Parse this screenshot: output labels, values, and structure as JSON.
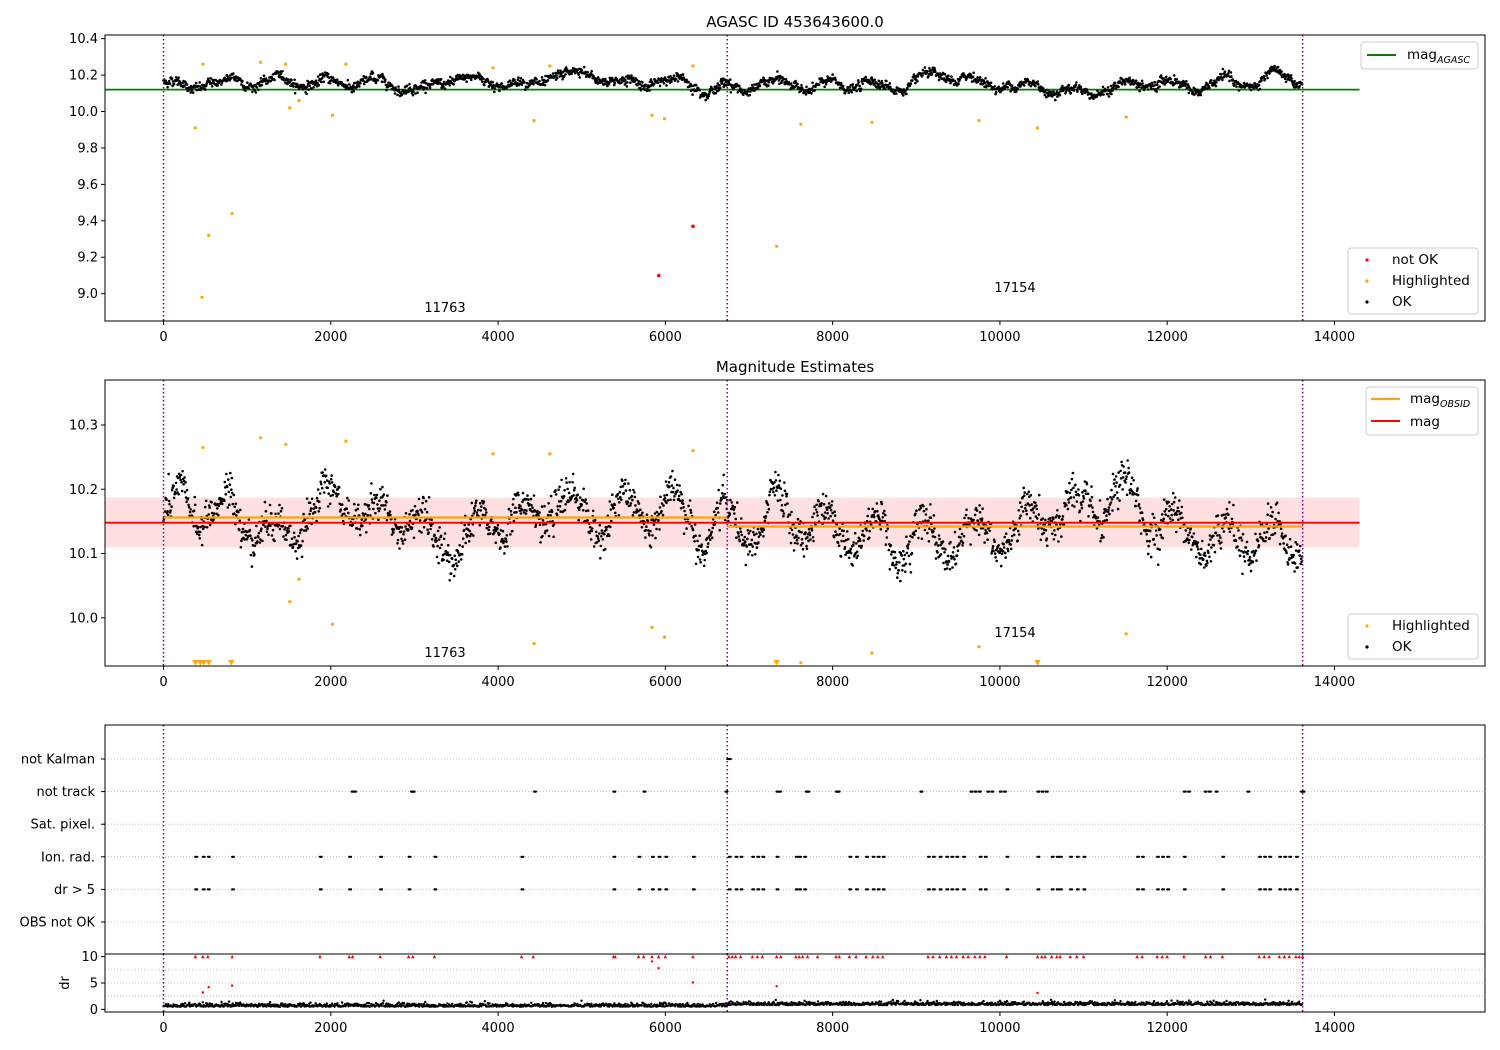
{
  "figure": {
    "top_title": "AGASC ID 453643600.0",
    "middle_title": "Magnitude Estimates",
    "obsid_labels": [
      "11763",
      "17154"
    ]
  },
  "colors": {
    "ok": "#000000",
    "not_ok": "#ff0000",
    "highlighted": "#ffa500",
    "mag_agasc": "#008000",
    "mag_obsid": "#ffa500",
    "mag": "#ff0000",
    "band": "#ffcccc",
    "obs_boundary": "#800080"
  },
  "legends": {
    "top_line": {
      "label": "mag",
      "sub": "AGASC"
    },
    "top_points": [
      "not OK",
      "Highlighted",
      "OK"
    ],
    "middle_lines": [
      {
        "label": "mag",
        "sub": "OBSID"
      },
      {
        "label": "mag",
        "sub": ""
      }
    ],
    "middle_points": [
      "Highlighted",
      "OK"
    ]
  },
  "chart_data": [
    {
      "type": "scatter",
      "title": "AGASC ID 453643600.0",
      "xlim": [
        -700,
        15800
      ],
      "ylim": [
        8.85,
        10.42
      ],
      "xticks": [
        0,
        2000,
        4000,
        6000,
        8000,
        10000,
        12000,
        14000
      ],
      "yticks": [
        9.0,
        9.2,
        9.4,
        9.6,
        9.8,
        10.0,
        10.2,
        10.4
      ],
      "obs_boundaries": [
        0,
        6740,
        13620
      ],
      "obsids": [
        {
          "label": "11763",
          "x": 3400,
          "y": 8.92
        },
        {
          "label": "17154",
          "x": 10150,
          "y": 9.03
        }
      ],
      "mag_agasc": 10.12,
      "mag_agasc_range": [
        -700,
        14300
      ],
      "ok_series": {
        "name": "OK",
        "segments": [
          {
            "x": [
              0,
              6740
            ],
            "mean": 10.16,
            "spread": 0.03
          },
          {
            "x": [
              6740,
              13620
            ],
            "mean": 10.14,
            "spread": 0.04
          }
        ]
      },
      "highlighted_points": [
        [
          380,
          9.91
        ],
        [
          460,
          8.98
        ],
        [
          470,
          10.26
        ],
        [
          540,
          9.32
        ],
        [
          820,
          9.44
        ],
        [
          1160,
          10.27
        ],
        [
          1460,
          10.26
        ],
        [
          1510,
          10.02
        ],
        [
          1620,
          10.06
        ],
        [
          2020,
          9.98
        ],
        [
          2180,
          10.26
        ],
        [
          3940,
          10.24
        ],
        [
          4430,
          9.95
        ],
        [
          4620,
          10.25
        ],
        [
          5840,
          9.98
        ],
        [
          5990,
          9.96
        ],
        [
          6330,
          10.25
        ],
        [
          7330,
          9.26
        ],
        [
          7620,
          9.93
        ],
        [
          8470,
          9.94
        ],
        [
          9750,
          9.95
        ],
        [
          10450,
          9.91
        ],
        [
          11510,
          9.97
        ]
      ],
      "not_ok_points": [
        [
          5920,
          9.1
        ],
        [
          6330,
          9.37
        ]
      ],
      "legend": "right"
    },
    {
      "type": "scatter",
      "title": "Magnitude Estimates",
      "xlim": [
        -700,
        15800
      ],
      "ylim": [
        9.925,
        10.37
      ],
      "xticks": [
        0,
        2000,
        4000,
        6000,
        8000,
        10000,
        12000,
        14000
      ],
      "yticks": [
        10.0,
        10.1,
        10.2,
        10.3
      ],
      "obs_boundaries": [
        0,
        6740,
        13620
      ],
      "obsids": [
        {
          "label": "11763",
          "x": 3400,
          "y": 9.94
        },
        {
          "label": "17154",
          "x": 10150,
          "y": 9.97
        }
      ],
      "mag": 10.148,
      "mag_band": [
        10.11,
        10.187
      ],
      "mag_range": [
        -700,
        14300
      ],
      "mag_obsid": [
        {
          "x": [
            0,
            6740
          ],
          "value": 10.156
        },
        {
          "x": [
            6740,
            13620
          ],
          "value": 10.142
        }
      ],
      "ok_series": {
        "name": "OK",
        "segments": [
          {
            "x": [
              0,
              6740
            ],
            "mean": 10.155,
            "spread": 0.035
          },
          {
            "x": [
              6740,
              13620
            ],
            "mean": 10.14,
            "spread": 0.045
          }
        ]
      },
      "highlighted_points": [
        [
          470,
          10.265
        ],
        [
          1160,
          10.28
        ],
        [
          1460,
          10.27
        ],
        [
          1510,
          10.025
        ],
        [
          1620,
          10.06
        ],
        [
          2020,
          9.99
        ],
        [
          2180,
          10.275
        ],
        [
          3940,
          10.255
        ],
        [
          4430,
          9.96
        ],
        [
          4620,
          10.255
        ],
        [
          5840,
          9.985
        ],
        [
          5990,
          9.97
        ],
        [
          6330,
          10.26
        ],
        [
          7620,
          9.93
        ],
        [
          8470,
          9.945
        ],
        [
          9750,
          9.955
        ],
        [
          11510,
          9.975
        ]
      ],
      "clipped_markers": [
        380,
        440,
        480,
        540,
        810,
        7330,
        10450
      ],
      "legend": "right"
    },
    {
      "type": "scatter",
      "xlim": [
        -700,
        15800
      ],
      "categories": [
        "not Kalman",
        "not track",
        "Sat. pixel.",
        "Ion. rad.",
        "dr > 5",
        "OBS not OK"
      ],
      "obs_boundaries": [
        0,
        6740,
        13620
      ],
      "flags": {
        "not Kalman": [
          6740,
          6760
        ],
        "not track": [
          2250,
          2280,
          2960,
          2980,
          4430,
          5380,
          5740,
          6720,
          7330,
          7360,
          7680,
          7700,
          8040,
          8060,
          9050,
          9650,
          9700,
          9750,
          9850,
          9900,
          10000,
          10050,
          10450,
          10500,
          10550,
          12200,
          12250,
          12450,
          12500,
          12580,
          12960,
          13600,
          13620
        ],
        "Sat. pixel.": [],
        "Ion. rad.": [
          380,
          470,
          530,
          820,
          1870,
          2220,
          2590,
          2930,
          3240,
          4280,
          5380,
          5680,
          5840,
          5920,
          6000,
          6330,
          6760,
          6840,
          6900,
          7040,
          7100,
          7160,
          7330,
          7560,
          7600,
          7660,
          8200,
          8280,
          8400,
          8480,
          8540,
          8600,
          9140,
          9200,
          9280,
          9360,
          9420,
          9480,
          9560,
          9760,
          9820,
          10080,
          10450,
          10620,
          10680,
          10720,
          10840,
          10920,
          11000,
          11640,
          11700,
          11880,
          11940,
          12000,
          12200,
          12660,
          13100,
          13160,
          13220,
          13340,
          13400,
          13460,
          13540
        ],
        "dr > 5": [
          380,
          470,
          530,
          820,
          1870,
          2220,
          2590,
          2930,
          3240,
          4280,
          5380,
          5680,
          5840,
          5920,
          6000,
          6330,
          6760,
          6840,
          6900,
          7040,
          7100,
          7160,
          7330,
          7560,
          7600,
          7660,
          8200,
          8280,
          8400,
          8480,
          8540,
          8600,
          9140,
          9200,
          9280,
          9360,
          9420,
          9480,
          9560,
          9760,
          9820,
          10080,
          10450,
          10620,
          10680,
          10720,
          10840,
          10920,
          11000,
          11640,
          11700,
          11880,
          11940,
          12000,
          12200,
          12660,
          13100,
          13160,
          13220,
          13340,
          13400,
          13460,
          13540
        ],
        "OBS not OK": []
      }
    },
    {
      "type": "scatter",
      "ylabel": "dr",
      "xlim": [
        -700,
        15800
      ],
      "ylim": [
        -0.5,
        10.5
      ],
      "xticks": [
        0,
        2000,
        4000,
        6000,
        8000,
        10000,
        12000,
        14000
      ],
      "yticks": [
        0,
        5,
        10
      ],
      "obs_boundaries": [
        0,
        6740,
        13620
      ],
      "ok_series": {
        "name": "OK",
        "mean": 0.5,
        "spread": 0.4
      },
      "dr_clipped_at_10": [
        380,
        470,
        530,
        820,
        1870,
        2220,
        2260,
        2590,
        2930,
        2980,
        3240,
        4280,
        4420,
        5380,
        5400,
        5680,
        5740,
        5840,
        5920,
        6000,
        6330,
        6760,
        6800,
        6840,
        6900,
        7040,
        7100,
        7160,
        7330,
        7380,
        7560,
        7600,
        7640,
        7700,
        7820,
        8040,
        8080,
        8200,
        8280,
        8400,
        8480,
        8540,
        8600,
        9140,
        9200,
        9280,
        9360,
        9420,
        9480,
        9560,
        9620,
        9700,
        9760,
        9820,
        10080,
        10450,
        10500,
        10540,
        10620,
        10680,
        10720,
        10840,
        10920,
        11000,
        11640,
        11700,
        11880,
        11940,
        12000,
        12200,
        12460,
        12520,
        12660,
        13100,
        13160,
        13220,
        13340,
        13400,
        13460,
        13540,
        13580,
        13620
      ],
      "dr_points": [
        [
          470,
          3.2
        ],
        [
          540,
          4.2
        ],
        [
          820,
          4.5
        ],
        [
          5920,
          7.8
        ],
        [
          5840,
          9.1
        ],
        [
          6330,
          5.1
        ],
        [
          7330,
          4.4
        ],
        [
          10450,
          3.1
        ]
      ]
    }
  ]
}
